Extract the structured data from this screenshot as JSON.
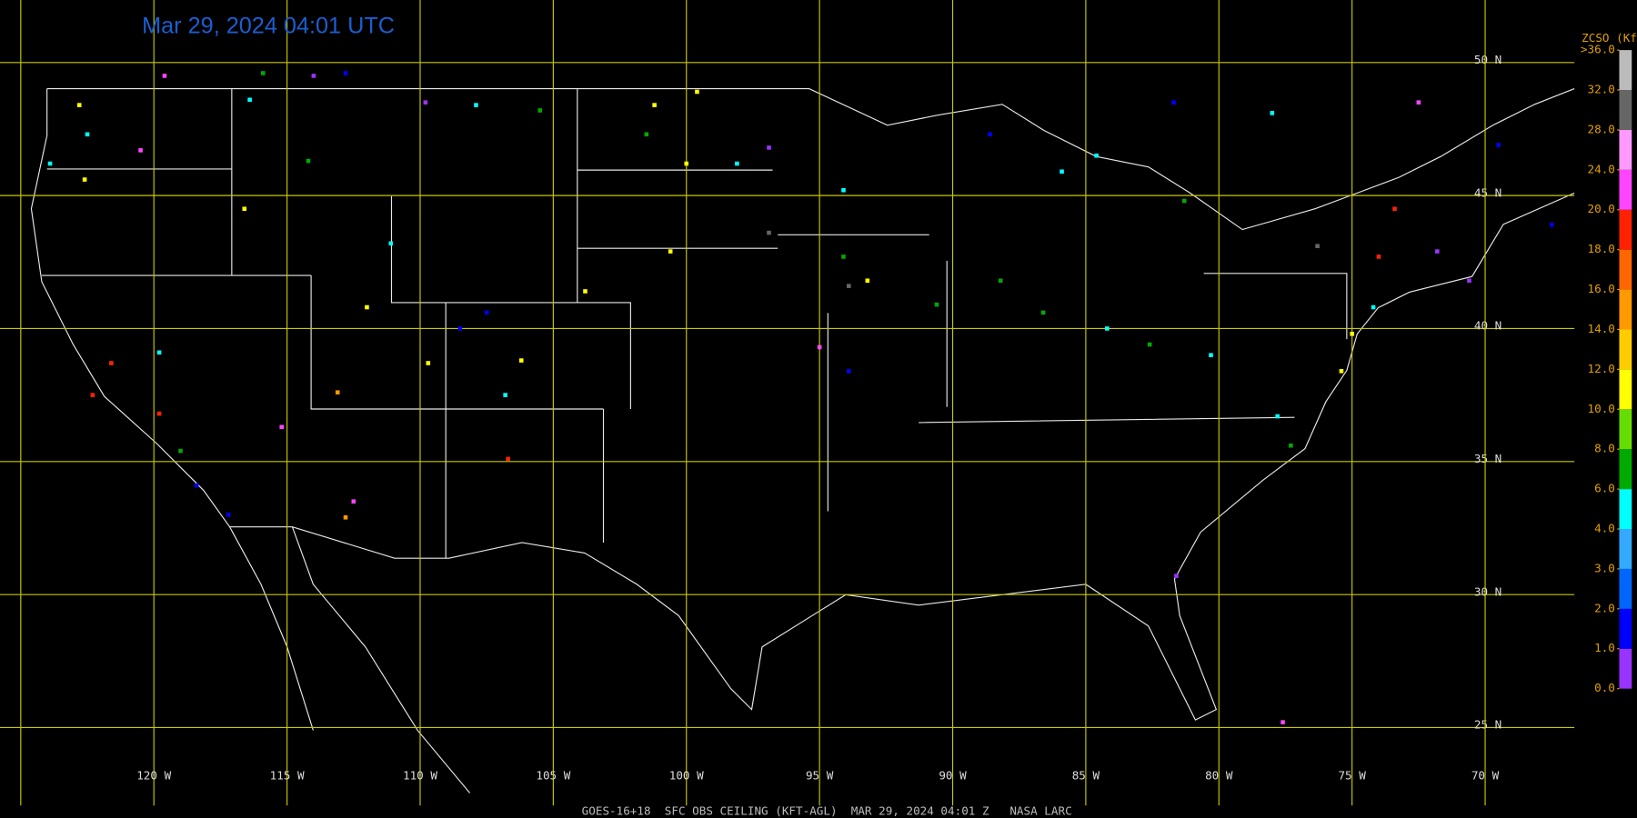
{
  "title": "Mar 29, 2024 04:01 UTC",
  "footer": "GOES-16+18  SFC OBS CEILING (KFT-AGL)  MAR 29, 2024 04:01 Z   NASA LARC",
  "map": {
    "lonlim": [
      -125.78,
      -66.65
    ],
    "latlim": [
      21.6,
      52.35
    ],
    "lat_lines": [
      {
        "value": 50,
        "label": "50 N"
      },
      {
        "value": 45,
        "label": "45 N"
      },
      {
        "value": 40,
        "label": "40 N"
      },
      {
        "value": 35,
        "label": "35 N"
      },
      {
        "value": 30,
        "label": "30 N"
      },
      {
        "value": 25,
        "label": "25 N"
      }
    ],
    "lon_lines": [
      {
        "value": -125,
        "label": null
      },
      {
        "value": -120,
        "label": "120 W"
      },
      {
        "value": -115,
        "label": "115 W"
      },
      {
        "value": -110,
        "label": "110 W"
      },
      {
        "value": -105,
        "label": "105 W"
      },
      {
        "value": -100,
        "label": "100 W"
      },
      {
        "value": -95,
        "label": "95 W"
      },
      {
        "value": -90,
        "label": "90 W"
      },
      {
        "value": -85,
        "label": "85 W"
      },
      {
        "value": -80,
        "label": "80 W"
      },
      {
        "value": -75,
        "label": "75 W"
      },
      {
        "value": -70,
        "label": "70 W"
      }
    ],
    "grid_color": "#c8c800"
  },
  "colorbar": {
    "title": "ZCSO (Kft)",
    "ticks": [
      {
        "value": 0,
        "label": "0.0"
      },
      {
        "value": 1,
        "label": "1.0"
      },
      {
        "value": 2,
        "label": "2.0"
      },
      {
        "value": 3,
        "label": "3.0"
      },
      {
        "value": 4,
        "label": "4.0"
      },
      {
        "value": 6,
        "label": "6.0"
      },
      {
        "value": 8,
        "label": "8.0"
      },
      {
        "value": 10,
        "label": "10.0"
      },
      {
        "value": 12,
        "label": "12.0"
      },
      {
        "value": 14,
        "label": "14.0"
      },
      {
        "value": 16,
        "label": "16.0"
      },
      {
        "value": 18,
        "label": "18.0"
      },
      {
        "value": 20,
        "label": "20.0"
      },
      {
        "value": 24,
        "label": "24.0"
      },
      {
        "value": 28,
        "label": "28.0"
      },
      {
        "value": 32,
        "label": "32.0"
      },
      {
        "value": 36,
        "label": ">36.0"
      }
    ],
    "colors": [
      "#9933ff",
      "#0000ff",
      "#0066ff",
      "#33aaff",
      "#00ffff",
      "#00aa00",
      "#66dd00",
      "#ffff00",
      "#ffcc00",
      "#ff9900",
      "#ff6600",
      "#ff2200",
      "#ff44ff",
      "#ff99ff",
      "#666666",
      "#bbbbbb"
    ]
  },
  "stations": {
    "lon": [
      -122.8,
      -122.5,
      -123.9,
      -122.6,
      -120.5,
      -119.6,
      -115.9,
      -114.0,
      -112.8,
      -109.8,
      -107.9,
      -105.5,
      -101.2,
      -99.6,
      -98.1,
      -101.5,
      -100.0,
      -96.9,
      -96.9,
      -94.1,
      -94.1,
      -93.9,
      -93.2,
      -90.6,
      -81.7,
      -78.0,
      -72.5,
      -81.3,
      -76.3,
      -74.0,
      -73.4,
      -71.8,
      -70.6,
      -74.2,
      -75.0,
      -75.4,
      -77.8,
      -77.3,
      -81.6,
      -77.6,
      -86.6,
      -84.2,
      -82.6,
      -80.3,
      -88.2,
      -93.9,
      -95.0,
      -106.7,
      -112.5,
      -112.8,
      -117.2,
      -118.4,
      -119.8,
      -121.6,
      -122.3,
      -119.8,
      -115.2,
      -119.0,
      -108.5,
      -107.5,
      -106.2,
      -106.8,
      -109.7,
      -112.0,
      -113.1,
      -111.1,
      -116.6,
      -116.4,
      -114.2,
      -103.8,
      -100.6,
      -84.6,
      -88.6,
      -85.9,
      -67.5,
      -69.5
    ],
    "lat": [
      48.4,
      47.3,
      46.2,
      45.6,
      46.7,
      49.5,
      49.6,
      49.5,
      49.6,
      48.5,
      48.4,
      48.2,
      48.4,
      48.9,
      46.2,
      47.3,
      46.2,
      46.8,
      43.6,
      45.2,
      42.7,
      41.6,
      41.8,
      40.9,
      48.5,
      48.1,
      48.5,
      44.8,
      43.1,
      42.7,
      44.5,
      42.9,
      41.8,
      40.8,
      39.8,
      38.4,
      36.7,
      35.6,
      30.7,
      25.2,
      40.6,
      40.0,
      39.4,
      39.0,
      41.8,
      38.4,
      39.3,
      35.1,
      33.5,
      32.9,
      33.0,
      34.1,
      36.8,
      38.7,
      37.5,
      39.1,
      36.3,
      35.4,
      40.0,
      40.6,
      38.8,
      37.5,
      38.7,
      40.8,
      37.6,
      43.2,
      44.5,
      48.6,
      46.3,
      41.4,
      42.9,
      46.5,
      47.3,
      45.9,
      43.9,
      46.9
    ],
    "values": [
      11,
      5,
      5,
      11,
      22,
      22,
      7,
      0.5,
      1.5,
      0.5,
      5,
      7,
      11,
      11,
      5,
      7,
      11,
      0.5,
      30,
      5,
      7,
      30,
      11,
      7,
      1.5,
      5,
      22,
      7,
      30,
      18,
      18,
      0.5,
      0.5,
      5,
      11,
      11,
      5,
      7,
      0.5,
      22,
      7,
      5,
      7,
      5,
      7,
      1.5,
      22,
      18,
      22,
      15,
      1.5,
      1.5,
      18,
      18,
      18,
      5,
      22,
      7,
      1.5,
      1.5,
      11,
      5,
      11,
      11,
      15,
      5,
      11,
      5,
      7,
      11,
      11,
      5,
      1.5,
      5,
      1.5,
      1.5
    ]
  }
}
